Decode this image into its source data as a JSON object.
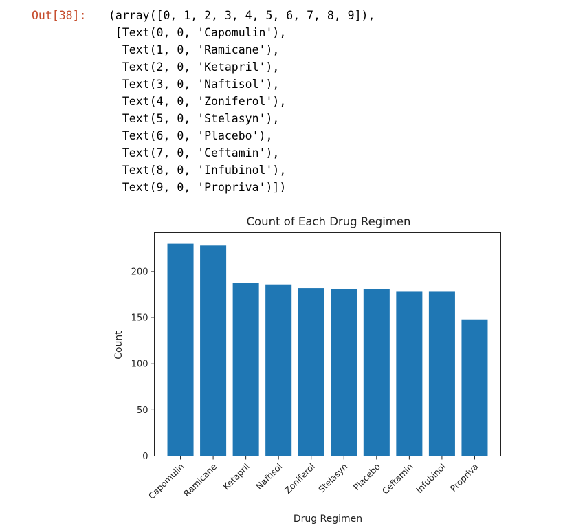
{
  "output_cell": {
    "prompt": "Out[38]:",
    "lines": [
      "(array([0, 1, 2, 3, 4, 5, 6, 7, 8, 9]),",
      " [Text(0, 0, 'Capomulin'),",
      "  Text(1, 0, 'Ramicane'),",
      "  Text(2, 0, 'Ketapril'),",
      "  Text(3, 0, 'Naftisol'),",
      "  Text(4, 0, 'Zoniferol'),",
      "  Text(5, 0, 'Stelasyn'),",
      "  Text(6, 0, 'Placebo'),",
      "  Text(7, 0, 'Ceftamin'),",
      "  Text(8, 0, 'Infubinol'),",
      "  Text(9, 0, 'Propriva')])"
    ]
  },
  "chart_data": {
    "type": "bar",
    "title": "Count of Each Drug Regimen",
    "xlabel": "Drug Regimen",
    "ylabel": "Count",
    "categories": [
      "Capomulin",
      "Ramicane",
      "Ketapril",
      "Naftisol",
      "Zoniferol",
      "Stelasyn",
      "Placebo",
      "Ceftamin",
      "Infubinol",
      "Propriva"
    ],
    "values": [
      230,
      228,
      188,
      186,
      182,
      181,
      181,
      178,
      178,
      148
    ],
    "ylim": [
      0,
      242
    ],
    "yticks": [
      0,
      50,
      100,
      150,
      200
    ],
    "bar_color": "#1f77b4",
    "grid": false,
    "legend": "none"
  }
}
